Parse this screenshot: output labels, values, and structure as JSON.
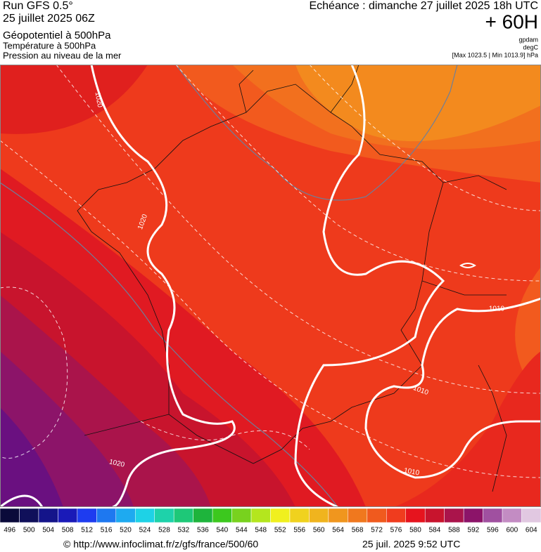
{
  "header": {
    "run": "Run GFS 0.5°",
    "run_date": "25 juillet 2025 06Z",
    "fields": [
      "Géopotentiel à 500hPa",
      "Température à 500hPa",
      "Pression au niveau de la mer"
    ],
    "forecast": "Echéance : dimanche 27 juillet 2025 18h UTC",
    "lead": "+ 60H",
    "units": [
      "gpdam",
      "degC",
      "[Max 1023.5 | Min 1013.9] hPa"
    ]
  },
  "isobar_labels": [
    "1020",
    "1020",
    "1020",
    "1010",
    "1010",
    "1010"
  ],
  "colorbar": {
    "labels": [
      496,
      500,
      504,
      508,
      512,
      516,
      520,
      524,
      528,
      532,
      536,
      540,
      544,
      548,
      552,
      556,
      560,
      564,
      568,
      572,
      576,
      580,
      584,
      588,
      592,
      596,
      600,
      604
    ],
    "colors": [
      "#0a0a3a",
      "#10105a",
      "#14148a",
      "#1a1ab8",
      "#1e3cf0",
      "#1e78f0",
      "#1eaaf0",
      "#1ed2e6",
      "#1ed2aa",
      "#1ec878",
      "#1eb43c",
      "#3cc81e",
      "#78d21e",
      "#b4e61e",
      "#f0f01e",
      "#f0d21e",
      "#f0b41e",
      "#f0961e",
      "#f0781e",
      "#f05a1e",
      "#f03c1e",
      "#e6141e",
      "#c8142d",
      "#aa144b",
      "#8c1469",
      "#a050a0",
      "#c38cc3",
      "#e1c8e1"
    ]
  },
  "footer": {
    "source": "© http://www.infoclimat.fr/z/gfs/france/500/60",
    "timestamp": "25 juil. 2025  9:52 UTC"
  }
}
